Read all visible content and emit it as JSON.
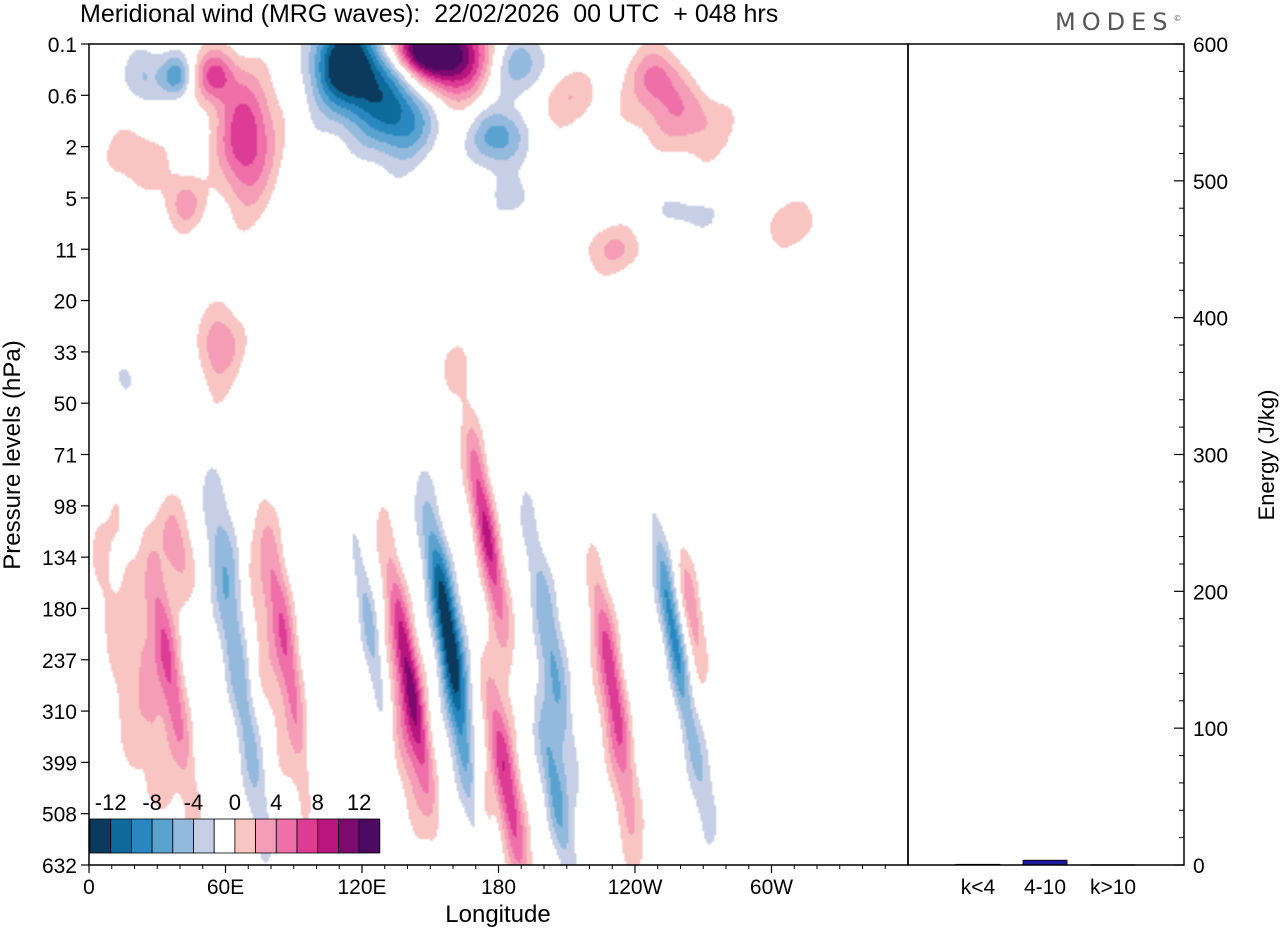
{
  "header": {
    "title": "Meridional wind (MRG waves):  22/02/2026  00 UTC  + 048 hrs",
    "brand": "MODES",
    "brand_mark": "©"
  },
  "chart_data": [
    {
      "type": "heatmap",
      "id": "contour",
      "title": "Meridional wind (MRG waves):  22/02/2026  00 UTC  + 048 hrs",
      "xlabel": "Longitude",
      "ylabel": "Pressure levels (hPa)",
      "x_tick_labels": [
        "0",
        "60E",
        "120E",
        "180",
        "120W",
        "60W"
      ],
      "y_tick_labels": [
        "0.1",
        "0.6",
        "2",
        "5",
        "11",
        "20",
        "33",
        "50",
        "71",
        "98",
        "134",
        "180",
        "237",
        "310",
        "399",
        "508",
        "632"
      ],
      "colorbar": {
        "labels": [
          "-12",
          "-8",
          "-4",
          "0",
          "4",
          "8",
          "12"
        ],
        "levels": [
          -14,
          -12,
          -10,
          -8,
          -6,
          -4,
          -2,
          2,
          4,
          6,
          8,
          10,
          12,
          14
        ],
        "colors": [
          "#0b3a5c",
          "#0e6a9a",
          "#2a88c0",
          "#5aa3d0",
          "#93b9dd",
          "#c6cfe6",
          "#ffffff",
          "#f8c5c3",
          "#f59cb6",
          "#ef6fa9",
          "#dd3c94",
          "#b8157f",
          "#7d0a6e",
          "#4c0a62"
        ]
      },
      "features": [
        {
          "lon": 112,
          "lev": 0.35,
          "w": 10,
          "h": 0.6,
          "v": -13
        },
        {
          "lon": 128,
          "lev": 0.9,
          "w": 13,
          "h": 0.8,
          "v": -9
        },
        {
          "lon": 140,
          "lev": 1.5,
          "w": 10,
          "h": 0.5,
          "v": -5
        },
        {
          "lon": 158,
          "lev": 0.25,
          "w": 13,
          "h": 0.55,
          "v": 14
        },
        {
          "lon": 145,
          "lev": 0.05,
          "w": 10,
          "h": 0.35,
          "v": 12
        },
        {
          "lon": 190,
          "lev": 0.45,
          "w": 10,
          "h": 0.45,
          "v": -6
        },
        {
          "lon": 180,
          "lev": 1.8,
          "w": 9,
          "h": 0.4,
          "v": -7
        },
        {
          "lon": 210,
          "lev": 1.0,
          "w": 12,
          "h": 0.45,
          "v": 4
        },
        {
          "lon": 68,
          "lev": 1.8,
          "w": 9,
          "h": 0.9,
          "v": 10
        },
        {
          "lon": 55,
          "lev": 0.6,
          "w": 6,
          "h": 0.35,
          "v": 8
        },
        {
          "lon": 38,
          "lev": 0.6,
          "w": 5,
          "h": 0.3,
          "v": -7
        },
        {
          "lon": 23,
          "lev": 0.6,
          "w": 6,
          "h": 0.4,
          "v": -4
        },
        {
          "lon": 20,
          "lev": 2.2,
          "w": 9,
          "h": 0.5,
          "v": 4
        },
        {
          "lon": 42,
          "lev": 3.1,
          "w": 6,
          "h": 0.4,
          "v": 5
        },
        {
          "lon": 250,
          "lev": 0.6,
          "w": 8,
          "h": 0.4,
          "v": 5
        },
        {
          "lon": 262,
          "lev": 1.3,
          "w": 14,
          "h": 0.6,
          "v": 6
        },
        {
          "lon": 232,
          "lev": 4.0,
          "w": 11,
          "h": 0.35,
          "v": 4
        },
        {
          "lon": 310,
          "lev": 3.5,
          "w": 12,
          "h": 0.35,
          "v": 3
        },
        {
          "lon": 265,
          "lev": 3.3,
          "w": 10,
          "h": 0.35,
          "v": -3
        },
        {
          "lon": 188,
          "lev": 3.0,
          "w": 8,
          "h": 0.35,
          "v": -3
        },
        {
          "lon": 275,
          "lev": 0.6,
          "w": 10,
          "h": 0.45,
          "v": -3
        },
        {
          "lon": 55,
          "lev": 6.0,
          "w": 6,
          "h": 0.7,
          "v": 3
        },
        {
          "lon": 60,
          "lev": 5.8,
          "w": 7,
          "h": 0.45,
          "v": 3
        },
        {
          "lon": 160,
          "lev": 6.3,
          "w": 5,
          "h": 0.4,
          "v": 3
        },
        {
          "lon": 15,
          "lev": 6.5,
          "w": 5,
          "h": 0.4,
          "v": -3
        },
        {
          "lon": 38,
          "lev": 9.8,
          "w": 5,
          "h": 0.7,
          "v": 5
        },
        {
          "lon": 35,
          "lev": 12.2,
          "w": 4,
          "h": 1.7,
          "v": 8
        },
        {
          "lon": 25,
          "lev": 12.5,
          "w": 5,
          "h": 2.5,
          "v": 4
        },
        {
          "lon": 12,
          "lev": 12.0,
          "w": 4,
          "h": 2.0,
          "v": 3
        },
        {
          "lon": 65,
          "lev": 12.2,
          "w": 4,
          "h": 2.4,
          "v": -6
        },
        {
          "lon": 63,
          "lev": 10.0,
          "w": 4,
          "h": 1.2,
          "v": -3
        },
        {
          "lon": 87,
          "lev": 11.8,
          "w": 4,
          "h": 1.7,
          "v": 8
        },
        {
          "lon": 78,
          "lev": 12.0,
          "w": 6,
          "h": 2.2,
          "v": 3
        },
        {
          "lon": 98,
          "lev": 13.8,
          "w": 3,
          "h": 1.4,
          "v": -3
        },
        {
          "lon": 123,
          "lev": 11.3,
          "w": 3,
          "h": 1.3,
          "v": -5
        },
        {
          "lon": 141,
          "lev": 12.4,
          "w": 3.5,
          "h": 1.7,
          "v": 12
        },
        {
          "lon": 138,
          "lev": 13.5,
          "w": 4,
          "h": 1.6,
          "v": 4
        },
        {
          "lon": 157,
          "lev": 11.2,
          "w": 4,
          "h": 1.4,
          "v": -13
        },
        {
          "lon": 165,
          "lev": 13.7,
          "w": 4,
          "h": 1.6,
          "v": -6
        },
        {
          "lon": 175,
          "lev": 9.6,
          "w": 3.5,
          "h": 1.4,
          "v": 11
        },
        {
          "lon": 184,
          "lev": 14.5,
          "w": 4,
          "h": 1.5,
          "v": 10
        },
        {
          "lon": 172,
          "lev": 14.6,
          "w": 3,
          "h": 1.5,
          "v": 4
        },
        {
          "lon": 203,
          "lev": 11.8,
          "w": 4,
          "h": 2.0,
          "v": -6
        },
        {
          "lon": 205,
          "lev": 14.6,
          "w": 3.5,
          "h": 1.2,
          "v": -7
        },
        {
          "lon": 230,
          "lev": 12.3,
          "w": 3.5,
          "h": 1.5,
          "v": 8
        },
        {
          "lon": 233,
          "lev": 14.2,
          "w": 4,
          "h": 1.6,
          "v": 4
        },
        {
          "lon": 257,
          "lev": 11.5,
          "w": 3,
          "h": 1.4,
          "v": -9
        },
        {
          "lon": 265,
          "lev": 11.0,
          "w": 3,
          "h": 1.0,
          "v": 5
        },
        {
          "lon": 270,
          "lev": 14.4,
          "w": 4,
          "h": 1.0,
          "v": -3
        }
      ]
    },
    {
      "type": "bar",
      "id": "energy",
      "categories": [
        "k<4",
        "4-10",
        "k>10"
      ],
      "values": [
        0.5,
        3.5,
        0.2
      ],
      "ylabel": "Energy (J/kg)",
      "ylim": [
        0,
        600
      ],
      "y_tick_labels": [
        "0",
        "100",
        "200",
        "300",
        "400",
        "500",
        "600"
      ]
    }
  ]
}
